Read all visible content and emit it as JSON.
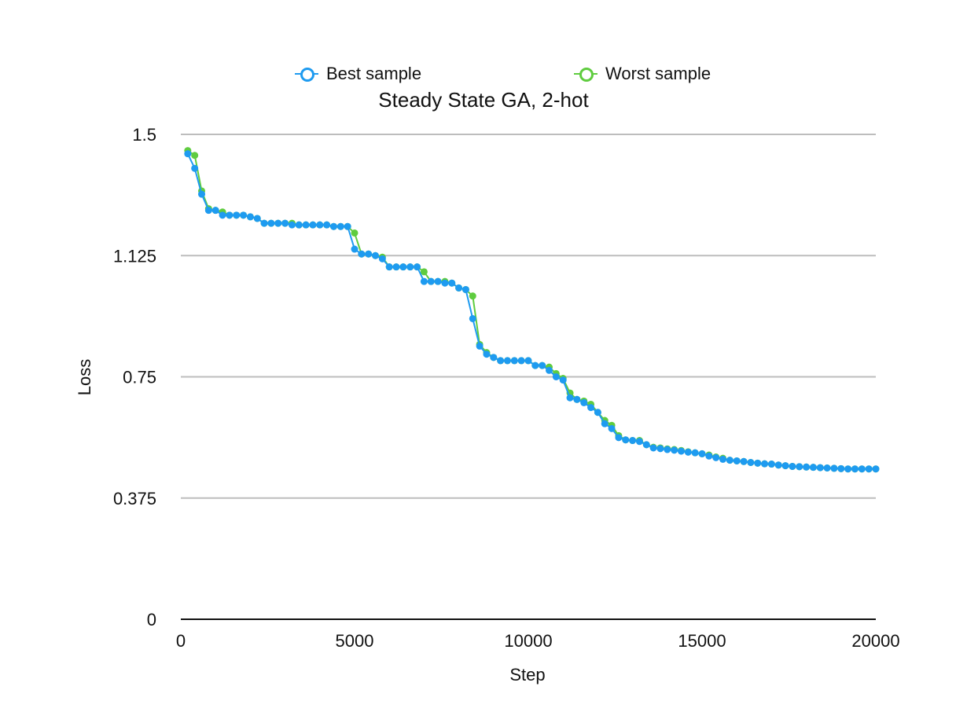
{
  "chart_data": {
    "type": "line",
    "title": "Steady State GA, 2-hot",
    "xlabel": "Step",
    "ylabel": "Loss",
    "xlim": [
      0,
      20000
    ],
    "ylim": [
      0,
      1.5
    ],
    "x_ticks": [
      0,
      5000,
      10000,
      15000,
      20000
    ],
    "y_ticks": [
      0,
      0.375,
      0.75,
      1.125,
      1.5
    ],
    "x_tick_labels": [
      "0",
      "5000",
      "10000",
      "15000",
      "20000"
    ],
    "y_tick_labels": [
      "0",
      "0.375",
      "0.75",
      "1.125",
      "1.5"
    ],
    "grid": "horizontal",
    "legend_position": "top-center",
    "series": [
      {
        "name": "Best sample",
        "color": "#1E9BF0",
        "x": [
          200,
          400,
          600,
          800,
          1000,
          1200,
          1400,
          1600,
          1800,
          2000,
          2200,
          2400,
          2600,
          2800,
          3000,
          3200,
          3400,
          3600,
          3800,
          4000,
          4200,
          4400,
          4600,
          4800,
          5000,
          5200,
          5400,
          5600,
          5800,
          6000,
          6200,
          6400,
          6600,
          6800,
          7000,
          7200,
          7400,
          7600,
          7800,
          8000,
          8200,
          8400,
          8600,
          8800,
          9000,
          9200,
          9400,
          9600,
          9800,
          10000,
          10200,
          10400,
          10600,
          10800,
          11000,
          11200,
          11400,
          11600,
          11800,
          12000,
          12200,
          12400,
          12600,
          12800,
          13000,
          13200,
          13400,
          13600,
          13800,
          14000,
          14200,
          14400,
          14600,
          14800,
          15000,
          15200,
          15400,
          15600,
          15800,
          16000,
          16200,
          16400,
          16600,
          16800,
          17000,
          17200,
          17400,
          17600,
          17800,
          18000,
          18200,
          18400,
          18600,
          18800,
          19000,
          19200,
          19400,
          19600,
          19800,
          20000
        ],
        "y": [
          1.44,
          1.395,
          1.315,
          1.265,
          1.265,
          1.25,
          1.25,
          1.25,
          1.25,
          1.245,
          1.24,
          1.225,
          1.225,
          1.225,
          1.225,
          1.22,
          1.22,
          1.22,
          1.22,
          1.22,
          1.22,
          1.215,
          1.215,
          1.215,
          1.145,
          1.13,
          1.13,
          1.125,
          1.115,
          1.09,
          1.09,
          1.09,
          1.09,
          1.09,
          1.045,
          1.045,
          1.045,
          1.04,
          1.04,
          1.025,
          1.02,
          0.93,
          0.845,
          0.82,
          0.81,
          0.8,
          0.8,
          0.8,
          0.8,
          0.8,
          0.785,
          0.785,
          0.77,
          0.75,
          0.74,
          0.685,
          0.68,
          0.67,
          0.655,
          0.64,
          0.605,
          0.59,
          0.562,
          0.555,
          0.553,
          0.55,
          0.54,
          0.53,
          0.528,
          0.525,
          0.523,
          0.52,
          0.517,
          0.515,
          0.512,
          0.505,
          0.5,
          0.495,
          0.492,
          0.49,
          0.488,
          0.485,
          0.483,
          0.481,
          0.48,
          0.477,
          0.475,
          0.473,
          0.472,
          0.471,
          0.47,
          0.469,
          0.468,
          0.467,
          0.466,
          0.465,
          0.465,
          0.465,
          0.465,
          0.465
        ]
      },
      {
        "name": "Worst sample",
        "color": "#5FCC3F",
        "x": [
          200,
          400,
          600,
          800,
          1000,
          1200,
          1400,
          1600,
          1800,
          2000,
          2200,
          2400,
          2600,
          2800,
          3000,
          3200,
          3400,
          3600,
          3800,
          4000,
          4200,
          4400,
          4600,
          4800,
          5000,
          5200,
          5400,
          5600,
          5800,
          6000,
          6200,
          6400,
          6600,
          6800,
          7000,
          7200,
          7400,
          7600,
          7800,
          8000,
          8200,
          8400,
          8600,
          8800,
          9000,
          9200,
          9400,
          9600,
          9800,
          10000,
          10200,
          10400,
          10600,
          10800,
          11000,
          11200,
          11400,
          11600,
          11800,
          12000,
          12200,
          12400,
          12600,
          12800,
          13000,
          13200,
          13400,
          13600,
          13800,
          14000,
          14200,
          14400,
          14600,
          14800,
          15000,
          15200,
          15400,
          15600,
          15800,
          16000,
          16200,
          16400,
          16600,
          16800,
          17000,
          17200,
          17400,
          17600,
          17800,
          18000,
          18200,
          18400,
          18600,
          18800,
          19000,
          19200,
          19400,
          19600,
          19800,
          20000
        ],
        "y": [
          1.45,
          1.435,
          1.325,
          1.27,
          1.265,
          1.26,
          1.25,
          1.25,
          1.25,
          1.245,
          1.24,
          1.225,
          1.225,
          1.225,
          1.225,
          1.225,
          1.22,
          1.22,
          1.22,
          1.22,
          1.22,
          1.215,
          1.215,
          1.215,
          1.195,
          1.13,
          1.13,
          1.125,
          1.12,
          1.09,
          1.09,
          1.09,
          1.09,
          1.09,
          1.075,
          1.045,
          1.045,
          1.045,
          1.04,
          1.025,
          1.02,
          1.0,
          0.85,
          0.825,
          0.81,
          0.8,
          0.8,
          0.8,
          0.8,
          0.8,
          0.785,
          0.785,
          0.78,
          0.76,
          0.745,
          0.7,
          0.68,
          0.675,
          0.665,
          0.64,
          0.615,
          0.6,
          0.568,
          0.555,
          0.553,
          0.553,
          0.54,
          0.532,
          0.53,
          0.527,
          0.525,
          0.522,
          0.518,
          0.515,
          0.512,
          0.508,
          0.502,
          0.498,
          0.492,
          0.49,
          0.488,
          0.485,
          0.483,
          0.481,
          0.48,
          0.477,
          0.475,
          0.473,
          0.472,
          0.471,
          0.47,
          0.469,
          0.468,
          0.467,
          0.466,
          0.465,
          0.465,
          0.465,
          0.465,
          0.465
        ]
      }
    ]
  }
}
